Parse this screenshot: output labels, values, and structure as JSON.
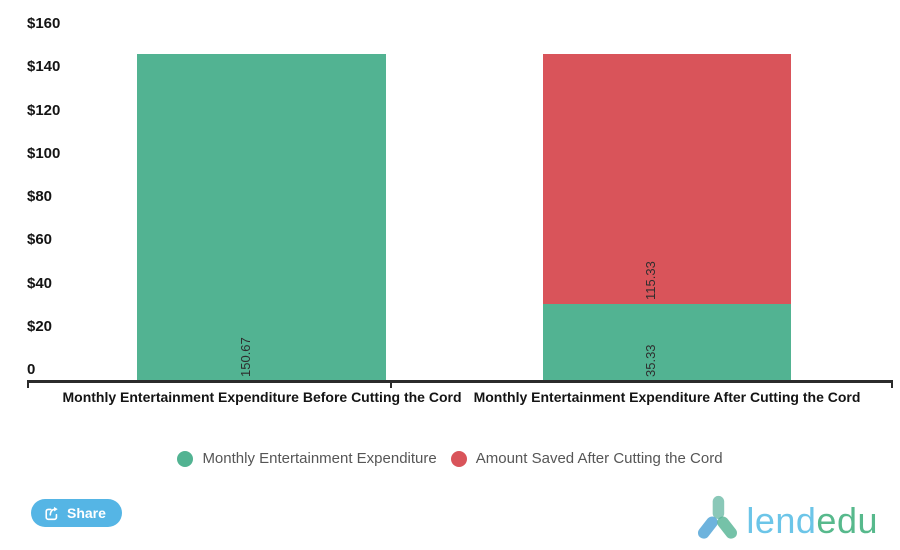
{
  "chart_data": {
    "type": "bar",
    "stacked": true,
    "title": "",
    "categories": [
      "Monthly Entertainment Expenditure Before Cutting the Cord",
      "Monthly Entertainment Expenditure After Cutting the Cord"
    ],
    "series": [
      {
        "name": "Monthly Entertainment Expenditure",
        "color": "#52b392",
        "values": [
          150.67,
          35.33
        ]
      },
      {
        "name": "Amount Saved After Cutting the Cord",
        "color": "#d9545a",
        "values": [
          null,
          115.33
        ]
      }
    ],
    "bar_value_labels": [
      [
        "150.67"
      ],
      [
        "35.33",
        "115.33"
      ]
    ],
    "y_ticks": [
      "$160",
      "$140",
      "$120",
      "$100",
      "$80",
      "$60",
      "$40",
      "$20",
      "0"
    ],
    "ylim": [
      0,
      160
    ],
    "xlabel": "",
    "ylabel": "",
    "grid": false,
    "legend_position": "bottom"
  },
  "legend": {
    "items": [
      {
        "label": "Monthly Entertainment Expenditure",
        "color": "#52b392"
      },
      {
        "label": "Amount Saved After Cutting the Cord",
        "color": "#d9545a"
      }
    ]
  },
  "footer": {
    "share_label": "Share",
    "logo": {
      "part1": "lend",
      "part2": "edu"
    }
  },
  "colors": {
    "bar_green": "#52b392",
    "bar_red": "#d9545a",
    "axis": "#2b2b2b",
    "share_button": "#55b5e5",
    "logo_blue": "#6cc5e8",
    "logo_green": "#57b98c",
    "logo_icon_teal": "#63b5a0",
    "logo_icon_blue": "#4aa0d5"
  }
}
